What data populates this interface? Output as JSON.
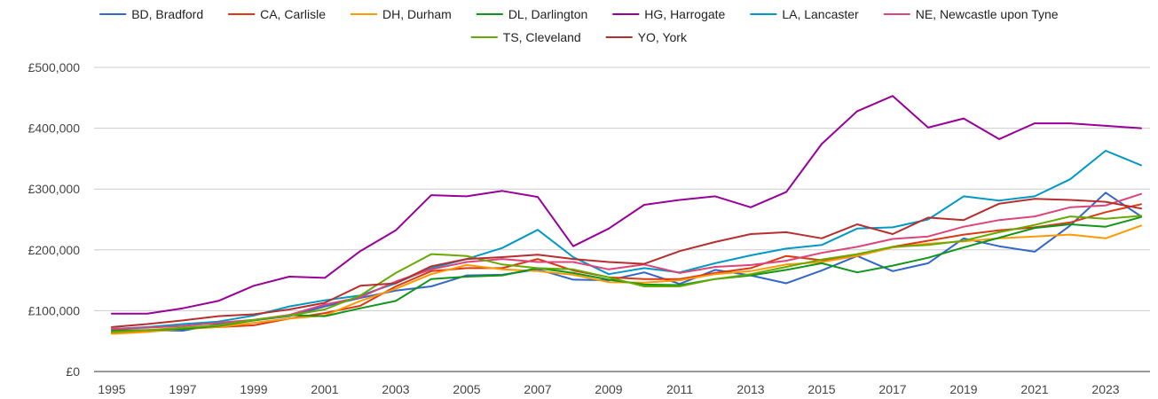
{
  "chart_data": {
    "type": "line",
    "title": "",
    "xlabel": "",
    "ylabel": "",
    "x": [
      1995,
      1996,
      1997,
      1998,
      1999,
      2000,
      2001,
      2002,
      2003,
      2004,
      2005,
      2006,
      2007,
      2008,
      2009,
      2010,
      2011,
      2012,
      2013,
      2014,
      2015,
      2016,
      2017,
      2018,
      2019,
      2020,
      2021,
      2022,
      2023,
      2024
    ],
    "xlim": [
      1995,
      2024
    ],
    "ylim": [
      0,
      500000
    ],
    "x_ticks": [
      "1995",
      "1997",
      "1999",
      "2001",
      "2003",
      "2005",
      "2007",
      "2009",
      "2011",
      "2013",
      "2015",
      "2017",
      "2019",
      "2021",
      "2023"
    ],
    "y_ticks": [
      "£0",
      "£100,000",
      "£200,000",
      "£300,000",
      "£400,000",
      "£500,000"
    ],
    "grid": "horizontal",
    "legend_position": "top",
    "series": [
      {
        "name": "BD, Bradford",
        "color": "#3366cc",
        "values": [
          68000,
          68000,
          67000,
          78000,
          84000,
          91000,
          107000,
          121000,
          133000,
          140000,
          158000,
          159000,
          168000,
          151000,
          150000,
          163000,
          144000,
          167000,
          158000,
          145000,
          166000,
          190000,
          165000,
          178000,
          219000,
          206000,
          197000,
          240000,
          294000,
          255000
        ]
      },
      {
        "name": "CA, Carlisle",
        "color": "#dc3912",
        "values": [
          64000,
          66000,
          70000,
          73000,
          76000,
          87000,
          96000,
          108000,
          140000,
          165000,
          170000,
          170000,
          185000,
          166000,
          155000,
          152000,
          152000,
          162000,
          170000,
          190000,
          183000,
          190000,
          205000,
          215000,
          225000,
          232000,
          237000,
          245000,
          262000,
          275000
        ]
      },
      {
        "name": "DH, Durham",
        "color": "#ff9900",
        "values": [
          62000,
          65000,
          70000,
          73000,
          80000,
          87000,
          92000,
          116000,
          136000,
          160000,
          175000,
          168000,
          165000,
          159000,
          147000,
          146000,
          150000,
          160000,
          165000,
          176000,
          180000,
          190000,
          204000,
          210000,
          214000,
          219000,
          222000,
          225000,
          219000,
          240000
        ]
      },
      {
        "name": "DL, Darlington",
        "color": "#109618",
        "values": [
          67000,
          68000,
          70000,
          75000,
          84000,
          93000,
          91000,
          104000,
          116000,
          152000,
          156000,
          158000,
          170000,
          162000,
          151000,
          143000,
          142000,
          152000,
          158000,
          167000,
          178000,
          163000,
          174000,
          187000,
          204000,
          220000,
          236000,
          242000,
          238000,
          254000
        ]
      },
      {
        "name": "HG, Harrogate",
        "color": "#990099",
        "values": [
          95000,
          95000,
          104000,
          116000,
          141000,
          156000,
          154000,
          198000,
          232000,
          290000,
          288000,
          297000,
          287000,
          206000,
          235000,
          274000,
          282000,
          288000,
          270000,
          295000,
          374000,
          428000,
          453000,
          401000,
          416000,
          382000,
          408000,
          408000,
          404000,
          400000
        ]
      },
      {
        "name": "LA, Lancaster",
        "color": "#0099c6",
        "values": [
          70000,
          73000,
          78000,
          82000,
          92000,
          107000,
          117000,
          125000,
          145000,
          170000,
          185000,
          203000,
          233000,
          188000,
          160000,
          170000,
          163000,
          178000,
          191000,
          202000,
          208000,
          235000,
          237000,
          250000,
          288000,
          281000,
          288000,
          316000,
          363000,
          339000
        ]
      },
      {
        "name": "NE, Newcastle upon Tyne",
        "color": "#dd4477",
        "values": [
          70000,
          72000,
          75000,
          80000,
          85000,
          93000,
          110000,
          122000,
          148000,
          168000,
          180000,
          185000,
          180000,
          180000,
          168000,
          176000,
          162000,
          172000,
          175000,
          182000,
          195000,
          205000,
          218000,
          222000,
          238000,
          249000,
          255000,
          270000,
          273000,
          292000
        ]
      },
      {
        "name": "TS, Cleveland",
        "color": "#66aa00",
        "values": [
          65000,
          68000,
          72000,
          76000,
          85000,
          92000,
          102000,
          125000,
          162000,
          193000,
          190000,
          176000,
          170000,
          168000,
          155000,
          140000,
          140000,
          152000,
          160000,
          172000,
          184000,
          193000,
          205000,
          208000,
          215000,
          229000,
          241000,
          255000,
          251000,
          256000
        ]
      },
      {
        "name": "YO, York",
        "color": "#b82e2e",
        "values": [
          73000,
          78000,
          84000,
          91000,
          94000,
          102000,
          113000,
          141000,
          145000,
          173000,
          185000,
          188000,
          192000,
          185000,
          180000,
          177000,
          198000,
          213000,
          226000,
          229000,
          219000,
          242000,
          226000,
          253000,
          249000,
          276000,
          284000,
          282000,
          279000,
          268000
        ]
      }
    ]
  }
}
